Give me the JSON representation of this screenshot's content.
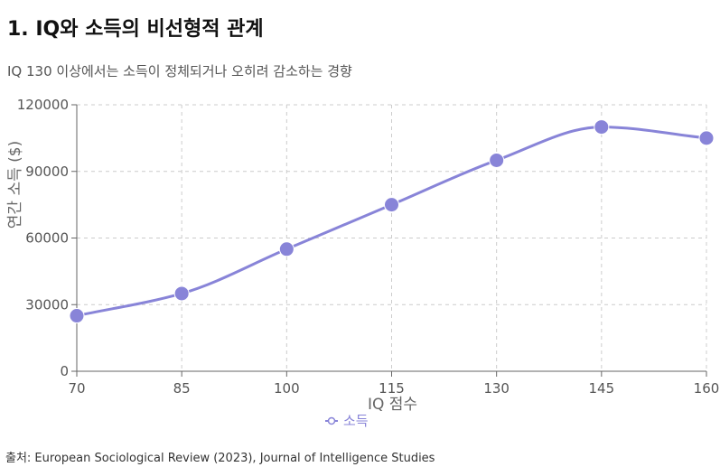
{
  "header": {
    "title": "1. IQ와 소득의 비선형적 관계",
    "subtitle": "IQ 130 이상에서는 소득이 정체되거나 오히려 감소하는 경향"
  },
  "footer": {
    "source": "출처: European Sociological Review (2023), Journal of Intelligence Studies"
  },
  "chart_data": {
    "type": "line",
    "x": [
      70,
      85,
      100,
      115,
      130,
      145,
      160
    ],
    "x_ticks": [
      "70",
      "85",
      "100",
      "115",
      "130",
      "145",
      "160"
    ],
    "series": [
      {
        "name": "소득",
        "values": [
          25000,
          35000,
          55000,
          75000,
          95000,
          110000,
          105000
        ]
      }
    ],
    "y_ticks": [
      0,
      30000,
      60000,
      90000,
      120000
    ],
    "xlabel": "IQ 점수",
    "ylabel": "연간 소득 ($)",
    "xlim": [
      70,
      160
    ],
    "ylim": [
      0,
      120000
    ],
    "grid": true,
    "grid_style": "dashed",
    "legend": "bottom-center",
    "line_color": "#8884d8"
  }
}
